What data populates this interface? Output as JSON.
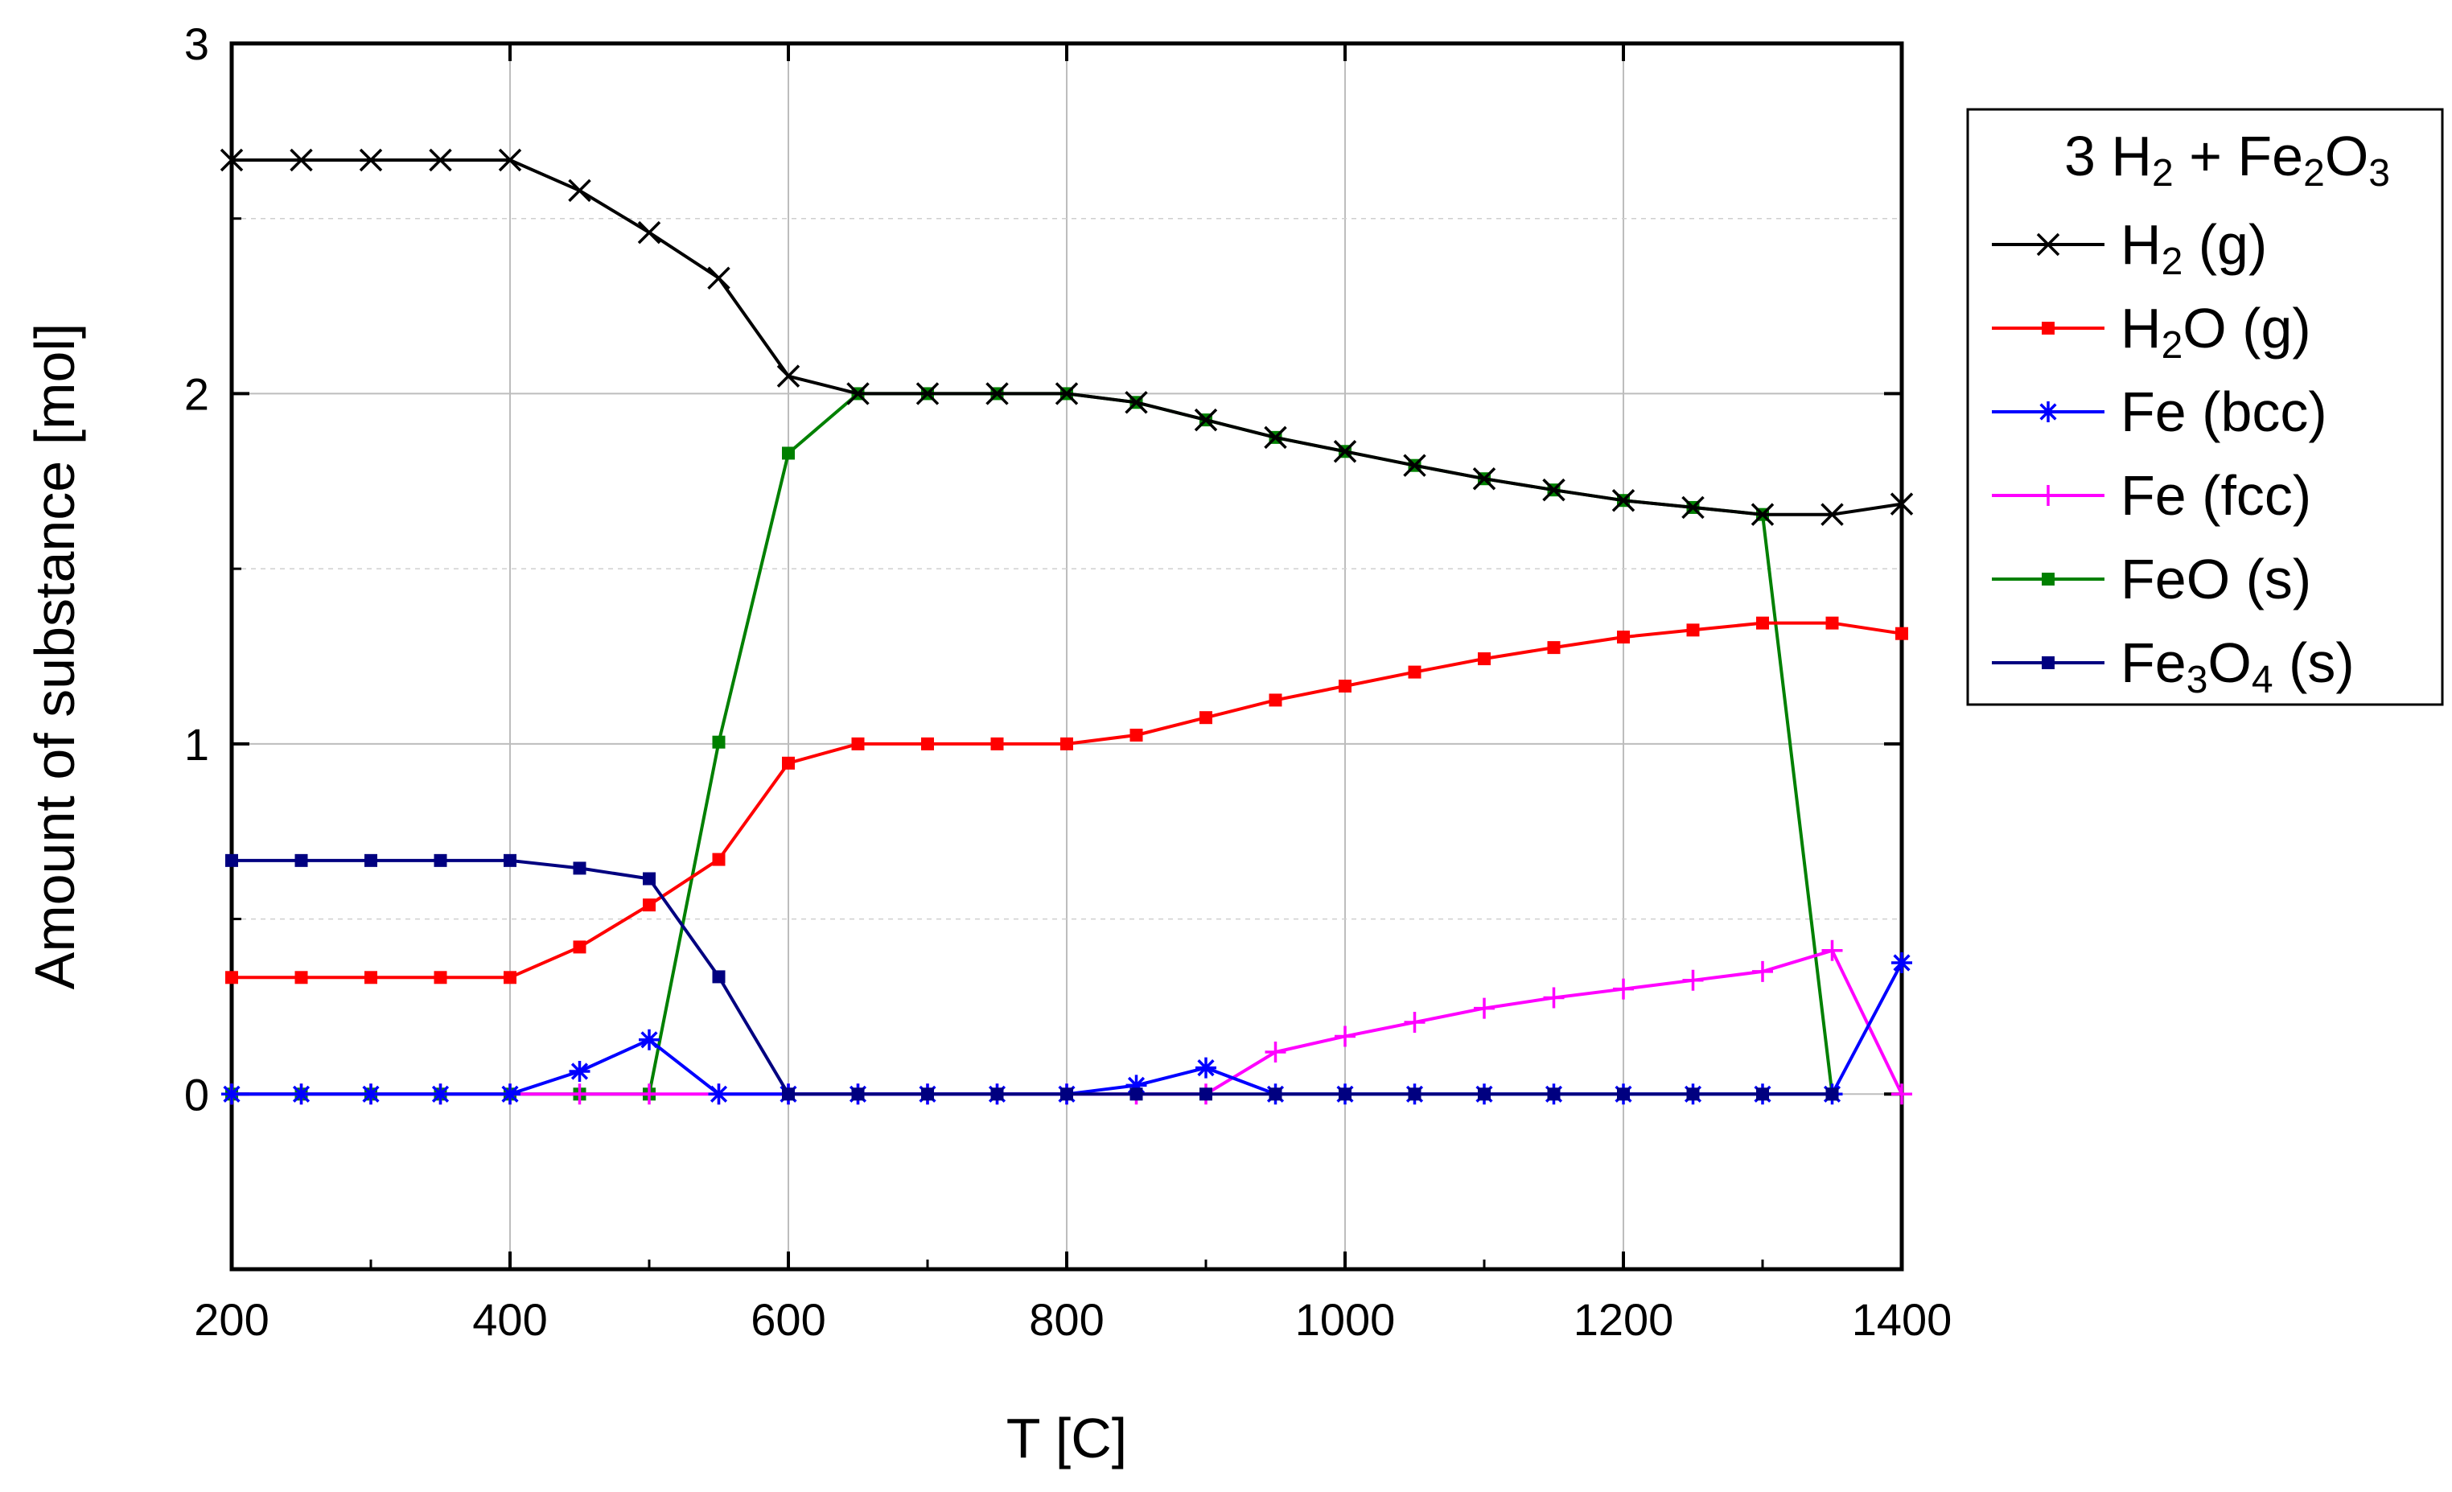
{
  "chart_data": {
    "type": "line",
    "title": "",
    "xlabel": "T [C]",
    "ylabel": "Amount of substance [mol]",
    "xlim": [
      200,
      1400
    ],
    "ylim": [
      -0.5,
      3
    ],
    "xticks": [
      "200",
      "400",
      "600",
      "800",
      "1000",
      "1200",
      "1400"
    ],
    "yticks": [
      "0",
      "1",
      "2",
      "3"
    ],
    "grid": true,
    "legend_position": "right",
    "legend_title": {
      "prefix": "3 H",
      "sub1": "2",
      "mid": " + Fe",
      "sub2": "2",
      "mid2": "O",
      "sub3": "3"
    },
    "x": [
      200,
      250,
      300,
      350,
      400,
      450,
      500,
      550,
      600,
      650,
      700,
      750,
      800,
      850,
      900,
      950,
      1000,
      1050,
      1100,
      1150,
      1200,
      1250,
      1300,
      1350,
      1400
    ],
    "series": [
      {
        "name": "H2 (g)",
        "label_parts": {
          "base": "H",
          "sub": "2",
          "rest": " (g)"
        },
        "color": "#000000",
        "marker": "x",
        "values": [
          2.667,
          2.667,
          2.667,
          2.667,
          2.667,
          2.58,
          2.46,
          2.33,
          2.05,
          2.0,
          2.0,
          2.0,
          2.0,
          1.975,
          1.925,
          1.875,
          1.835,
          1.795,
          1.757,
          1.725,
          1.695,
          1.675,
          1.655,
          1.655,
          1.685
        ]
      },
      {
        "name": "H2O (g)",
        "label_parts": {
          "base": "H",
          "sub": "2",
          "rest": "O (g)"
        },
        "color": "#ff0000",
        "marker": "square",
        "values": [
          0.333,
          0.333,
          0.333,
          0.333,
          0.333,
          0.42,
          0.54,
          0.67,
          0.945,
          1.0,
          1.0,
          1.0,
          1.0,
          1.025,
          1.075,
          1.125,
          1.165,
          1.205,
          1.243,
          1.275,
          1.305,
          1.325,
          1.345,
          1.345,
          1.315
        ]
      },
      {
        "name": "Fe (bcc)",
        "label_parts": {
          "base": "Fe (bcc)",
          "sub": "",
          "rest": ""
        },
        "color": "#0000ff",
        "marker": "star",
        "values": [
          0,
          0,
          0,
          0,
          0,
          0.065,
          0.155,
          0,
          0,
          0,
          0,
          0,
          0,
          0.025,
          0.075,
          0,
          0,
          0,
          0,
          0,
          0,
          0,
          0,
          0,
          0.375
        ]
      },
      {
        "name": "Fe (fcc)",
        "label_parts": {
          "base": "Fe (fcc)",
          "sub": "",
          "rest": ""
        },
        "color": "#ff00ff",
        "marker": "plus",
        "values": [
          0,
          0,
          0,
          0,
          0,
          0,
          0,
          0,
          0,
          0,
          0,
          0,
          0,
          0,
          0,
          0.12,
          0.165,
          0.205,
          0.245,
          0.275,
          0.3,
          0.325,
          0.35,
          0.41,
          0
        ]
      },
      {
        "name": "FeO (s)",
        "label_parts": {
          "base": "FeO (s)",
          "sub": "",
          "rest": ""
        },
        "color": "#008000",
        "marker": "square",
        "values": [
          0,
          0,
          0,
          0,
          0,
          0,
          0,
          1.005,
          1.83,
          2.0,
          2.0,
          2.0,
          2.0,
          1.975,
          1.925,
          1.875,
          1.835,
          1.795,
          1.757,
          1.725,
          1.695,
          1.675,
          1.655,
          0,
          null
        ]
      },
      {
        "name": "Fe3O4 (s)",
        "label_parts": {
          "base": "Fe",
          "sub": "3",
          "rest": "O",
          "sub2": "4",
          "rest2": " (s)"
        },
        "color": "#000080",
        "marker": "square",
        "values": [
          0.667,
          0.667,
          0.667,
          0.667,
          0.667,
          0.645,
          0.615,
          0.335,
          0,
          0,
          0,
          0,
          0,
          0,
          0,
          0,
          0,
          0,
          0,
          0,
          0,
          0,
          0,
          0,
          null
        ]
      }
    ]
  }
}
